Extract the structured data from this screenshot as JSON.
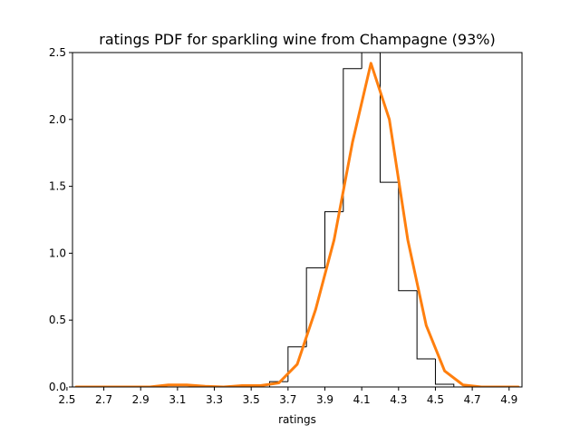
{
  "chart_data": {
    "type": "line",
    "title": "ratings PDF for sparkling wine from Champagne (93%)",
    "xlabel": "ratings",
    "ylabel": "",
    "xlim": [
      2.53,
      4.97
    ],
    "ylim": [
      0,
      2.5
    ],
    "grid": false,
    "legend": "none",
    "xticks": [
      "2.5",
      "2.7",
      "2.9",
      "3.1",
      "3.3",
      "3.5",
      "3.7",
      "3.9",
      "4.1",
      "4.3",
      "4.5",
      "4.7",
      "4.9"
    ],
    "yticks": [
      "0.0",
      "0.5",
      "1.0",
      "1.5",
      "2.0",
      "2.5"
    ],
    "histogram": {
      "color": "#000000",
      "bin_edges": [
        3.6,
        3.7,
        3.8,
        3.9,
        4.0,
        4.1,
        4.2,
        4.3,
        4.4,
        4.5,
        4.6
      ],
      "values": [
        0.04,
        0.3,
        0.89,
        1.31,
        2.38,
        2.62,
        1.53,
        0.72,
        0.21,
        0.02
      ]
    },
    "series": [
      {
        "color": "#ff7f0e",
        "x": [
          2.55,
          2.65,
          2.75,
          2.85,
          2.95,
          3.05,
          3.15,
          3.25,
          3.35,
          3.45,
          3.55,
          3.65,
          3.75,
          3.85,
          3.95,
          4.05,
          4.15,
          4.25,
          4.35,
          4.45,
          4.55,
          4.65,
          4.75,
          4.85,
          4.95
        ],
        "values": [
          0.0,
          0.0,
          0.0,
          0.0,
          0.0,
          0.015,
          0.015,
          0.005,
          0.0,
          0.01,
          0.01,
          0.03,
          0.17,
          0.58,
          1.1,
          1.83,
          2.42,
          2.0,
          1.1,
          0.46,
          0.12,
          0.015,
          0.0,
          0.0,
          0.0
        ]
      }
    ]
  }
}
